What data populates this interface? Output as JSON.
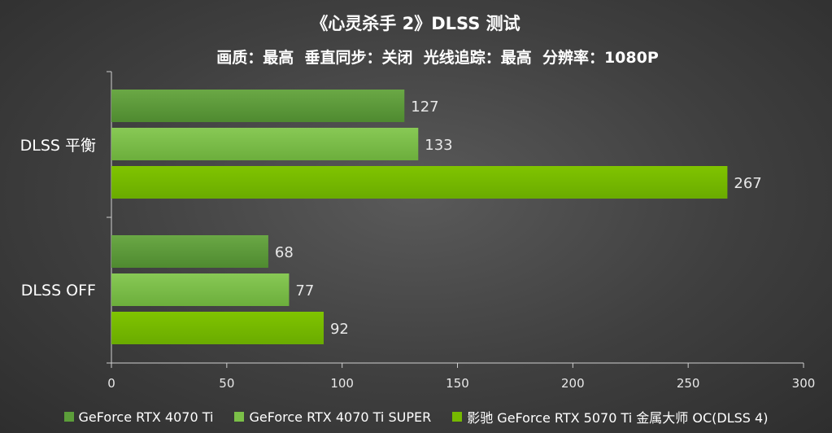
{
  "chart_data": {
    "type": "bar",
    "orientation": "horizontal",
    "title": "《心灵杀手 2》DLSS 测试",
    "subtitle": "画质：最高  垂直同步：关闭  光线追踪：最高  分辨率：1080P",
    "categories": [
      "DLSS 平衡",
      "DLSS  OFF"
    ],
    "series": [
      {
        "name": "GeForce RTX 4070 Ti",
        "values": [
          127,
          68
        ],
        "color": "#5c9e3a"
      },
      {
        "name": "GeForce RTX 4070 Ti SUPER",
        "values": [
          133,
          77
        ],
        "color": "#7bbf48"
      },
      {
        "name": "影驰 GeForce RTX 5070 Ti 金属大师 OC(DLSS 4)",
        "values": [
          267,
          92
        ],
        "color": "#76b900"
      }
    ],
    "xlim": [
      0,
      300
    ],
    "xticks": [
      0,
      50,
      100,
      150,
      200,
      250,
      300
    ],
    "grid": false,
    "legend_position": "bottom"
  }
}
